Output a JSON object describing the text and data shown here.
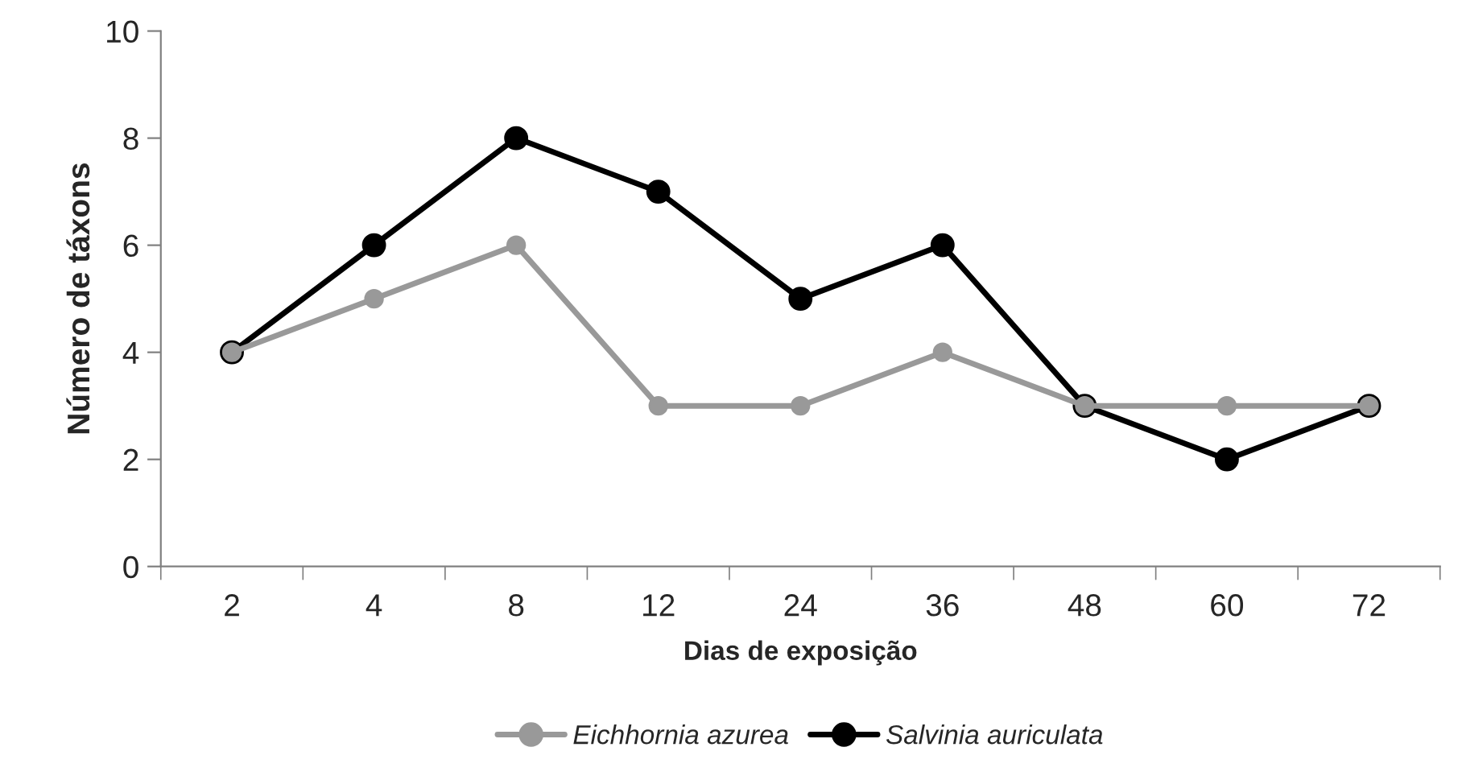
{
  "chart_data": {
    "type": "line",
    "xlabel": "Dias de exposição",
    "ylabel": "Número de táxons",
    "categories": [
      "2",
      "4",
      "8",
      "12",
      "24",
      "36",
      "48",
      "60",
      "72"
    ],
    "series": [
      {
        "name": "Eichhornia azurea",
        "color": "#999999",
        "values": [
          4,
          5,
          6,
          3,
          3,
          4,
          3,
          3,
          3
        ]
      },
      {
        "name": "Salvinia auriculata",
        "color": "#000000",
        "values": [
          4,
          6,
          8,
          7,
          5,
          6,
          3,
          2,
          3
        ]
      }
    ],
    "ylim": [
      0,
      10
    ],
    "yticks": [
      0,
      2,
      4,
      6,
      8,
      10
    ],
    "grid": false,
    "legend": "bottom",
    "marker": "circle",
    "line_style": "solid"
  }
}
